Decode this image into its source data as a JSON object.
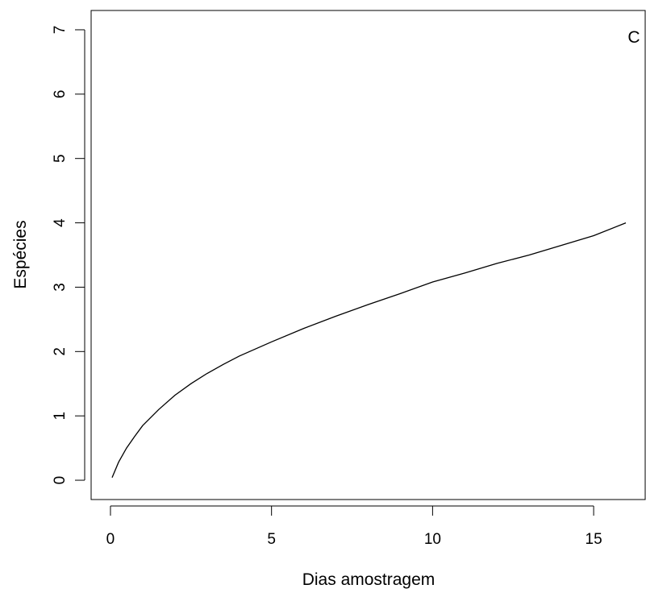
{
  "chart_data": {
    "type": "line",
    "title": "",
    "panel_label": "C",
    "xlabel": "Dias amostragem",
    "ylabel": "Espécies",
    "xlim": [
      -0.6,
      16.6
    ],
    "ylim": [
      -0.3,
      7.3
    ],
    "xticks": [
      0,
      5,
      10,
      15
    ],
    "yticks": [
      0,
      1,
      2,
      3,
      4,
      5,
      6,
      7
    ],
    "grid": false,
    "legend": "none",
    "line_color": "#000000",
    "series": [
      {
        "x": [
          0.05,
          0.25,
          0.5,
          0.75,
          1.0,
          1.5,
          2.0,
          2.5,
          3.0,
          3.5,
          4.0,
          5.0,
          6.0,
          7.0,
          8.0,
          9.0,
          10.0,
          11.0,
          12.0,
          13.0,
          14.0,
          15.0,
          16.0
        ],
        "y": [
          0.04,
          0.28,
          0.5,
          0.68,
          0.85,
          1.1,
          1.32,
          1.5,
          1.66,
          1.8,
          1.93,
          2.15,
          2.36,
          2.55,
          2.73,
          2.9,
          3.08,
          3.22,
          3.37,
          3.5,
          3.65,
          3.8,
          4.0
        ]
      }
    ]
  }
}
